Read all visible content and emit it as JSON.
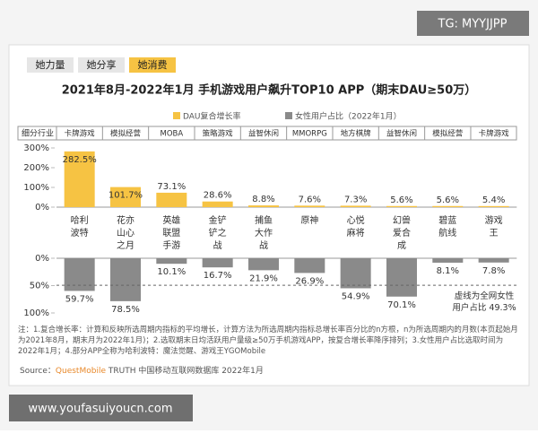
{
  "watermark": "TG: MYYJJPP",
  "tabs": [
    "她力量",
    "她分享",
    "她消费"
  ],
  "header_label": "细分行业",
  "segments": [
    "卡牌游戏",
    "模拟经营",
    "MOBA",
    "策略游戏",
    "益智休闲",
    "MMORPG",
    "地方棋牌",
    "益智休闲",
    "模拟经营",
    "卡牌游戏"
  ],
  "notes": "注：1.复合增长率：计算和反映所选周期内指标的平均增长，计算方法为所选周期内指标总增长率百分比的n方根，n为所选周期内的月数(本页起始月为2021年8月，期末月为2022年1月)；2.选取期末日均活跃用户量级≥50万手机游戏APP，按复合增长率降序排列；3.女性用户占比选取时间为2022年1月；4.部分APP全称为哈利波特：魔法觉醒、游戏王YGOMobile",
  "source_prefix": "Source：",
  "source_brand": "QuestMobile",
  "source_rest": "TRUTH 中国移动互联网数据库 2022年1月",
  "footer_url": "www.youfasuiyoucn.com",
  "chart_data": [
    {
      "type": "bar",
      "title": "2021年8月-2022年1月 手机游戏用户飙升TOP10 APP（期末DAU≥50万）",
      "categories": [
        "哈利波特",
        "花亦山心之月",
        "英雄联盟手游",
        "金铲铲之战",
        "捕鱼大作战",
        "原神",
        "心悦麻将",
        "幻兽爱合成",
        "碧蓝航线",
        "游戏王"
      ],
      "series": [
        {
          "name": "DAU复合增长率",
          "color": "#f6c343",
          "values": [
            282.5,
            101.7,
            73.1,
            28.6,
            8.8,
            7.6,
            7.3,
            5.6,
            5.6,
            5.4
          ],
          "value_labels": [
            "282.5%",
            "101.7%",
            "73.1%",
            "28.6%",
            "8.8%",
            "7.6%",
            "7.3%",
            "5.6%",
            "5.6%",
            "5.4%"
          ]
        }
      ],
      "ylim": [
        0,
        300
      ],
      "yticks": [
        {
          "value": 0,
          "label": "0%"
        },
        {
          "value": 100,
          "label": "100%"
        },
        {
          "value": 200,
          "label": "200%"
        },
        {
          "value": 300,
          "label": "300%"
        }
      ]
    },
    {
      "type": "bar",
      "y_inverted": true,
      "series": [
        {
          "name": "女性用户占比（2022年1月）",
          "color": "#8a8a8a",
          "values": [
            59.7,
            78.5,
            10.1,
            16.7,
            21.9,
            26.9,
            54.9,
            70.1,
            8.1,
            7.8
          ],
          "value_labels": [
            "59.7%",
            "78.5%",
            "10.1%",
            "16.7%",
            "21.9%",
            "26.9%",
            "54.9%",
            "70.1%",
            "8.1%",
            "7.8%"
          ]
        }
      ],
      "ylim": [
        0,
        100
      ],
      "yticks": [
        {
          "value": 0,
          "label": "0%"
        },
        {
          "value": 50,
          "label": "50%"
        },
        {
          "value": 100,
          "label": "100%"
        }
      ],
      "reference_line": {
        "value": 49.3,
        "label": "虚线为全网女性用户占比 49.3%"
      }
    }
  ]
}
